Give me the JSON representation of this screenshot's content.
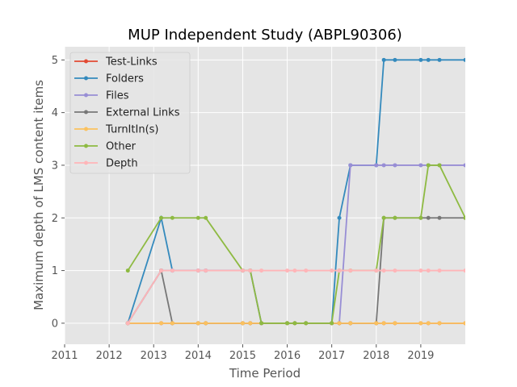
{
  "chart_data": {
    "type": "line",
    "title": "MUP Independent Study (ABPL90306)",
    "xlabel": "Time Period",
    "ylabel": "Maximum depth of LMS content items",
    "xlim": [
      2011,
      2020
    ],
    "ylim": [
      -0.4,
      5.25
    ],
    "xticks": [
      2011,
      2012,
      2013,
      2014,
      2015,
      2016,
      2017,
      2018,
      2019
    ],
    "yticks": [
      0,
      1,
      2,
      3,
      4,
      5
    ],
    "grid": true,
    "legend_position": "top-left",
    "colors": {
      "plot_background": "#e5e5e5",
      "grid": "#ffffff"
    },
    "x": [
      2012.42,
      2013.17,
      2013.42,
      2014.0,
      2014.17,
      2015.0,
      2015.17,
      2015.42,
      2016.0,
      2016.17,
      2016.42,
      2017.0,
      2017.17,
      2017.42,
      2018.0,
      2018.17,
      2018.42,
      2019.0,
      2019.17,
      2019.42,
      2020.0
    ],
    "series": [
      {
        "name": "Test-Links",
        "color": "#e24a33",
        "values": [
          0,
          0,
          0,
          0,
          0,
          0,
          0,
          0,
          0,
          0,
          0,
          0,
          0,
          0,
          0,
          0,
          0,
          0,
          0,
          0,
          0
        ]
      },
      {
        "name": "Folders",
        "color": "#348abd",
        "values": [
          0,
          2,
          1,
          1,
          1,
          1,
          1,
          0,
          0,
          0,
          0,
          0,
          2,
          3,
          3,
          5,
          5,
          5,
          5,
          5,
          5
        ]
      },
      {
        "name": "Files",
        "color": "#988ed5",
        "values": [
          0,
          1,
          1,
          1,
          1,
          1,
          1,
          0,
          0,
          0,
          0,
          0,
          0,
          3,
          3,
          3,
          3,
          3,
          3,
          3,
          3
        ]
      },
      {
        "name": "External Links",
        "color": "#777777",
        "values": [
          0,
          1,
          0,
          0,
          0,
          0,
          0,
          0,
          0,
          0,
          0,
          0,
          0,
          0,
          0,
          2,
          2,
          2,
          2,
          2,
          2
        ]
      },
      {
        "name": "TurnItIn(s)",
        "color": "#fbc15e",
        "values": [
          0,
          0,
          0,
          0,
          0,
          0,
          0,
          0,
          0,
          0,
          0,
          0,
          0,
          0,
          0,
          0,
          0,
          0,
          0,
          0,
          0
        ]
      },
      {
        "name": "Other",
        "color": "#8eba42",
        "values": [
          1,
          2,
          2,
          2,
          2,
          1,
          1,
          0,
          0,
          0,
          0,
          0,
          1,
          1,
          1,
          2,
          2,
          2,
          3,
          3,
          2
        ]
      },
      {
        "name": "Depth",
        "color": "#ffb5b8",
        "values": [
          0,
          1,
          1,
          1,
          1,
          1,
          1,
          1,
          1,
          1,
          1,
          1,
          1,
          1,
          1,
          1,
          1,
          1,
          1,
          1,
          1
        ]
      }
    ]
  }
}
